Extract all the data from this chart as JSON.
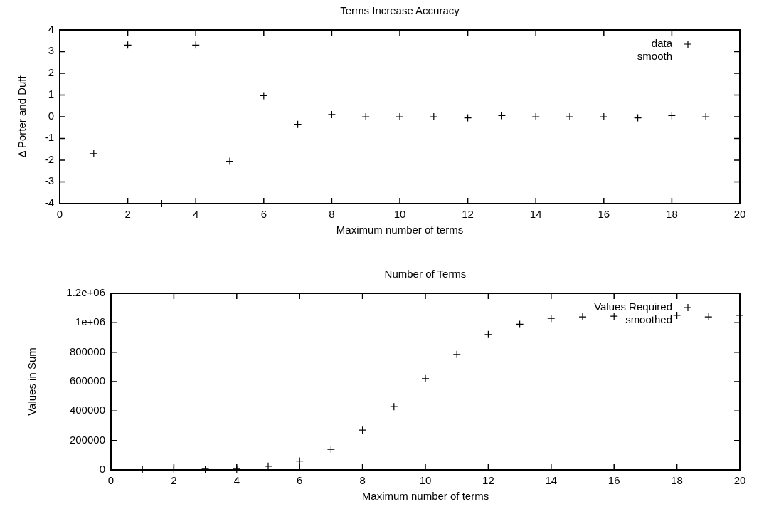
{
  "chart_data": [
    {
      "type": "scatter",
      "title": "Terms Increase Accuracy",
      "xlabel": "Maximum number of terms",
      "ylabel": "Δ Porter and Duff",
      "xlim": [
        0,
        20
      ],
      "xticks": [
        0,
        2,
        4,
        6,
        8,
        10,
        12,
        14,
        16,
        18,
        20
      ],
      "ylim": [
        -4,
        4
      ],
      "yticks": [
        -4,
        -3,
        -2,
        -1,
        0,
        1,
        2,
        3,
        4
      ],
      "marker": "cross",
      "legend": "top right",
      "grid": false,
      "series": [
        {
          "name": "data",
          "color": "#000000",
          "x": [
            1,
            2,
            3,
            4,
            5,
            6,
            7,
            8,
            9,
            10,
            11,
            12,
            13,
            14,
            15,
            16,
            17,
            18,
            19
          ],
          "values": [
            -1.7,
            3.3,
            -4,
            3.3,
            -2.05,
            0.97,
            -0.35,
            0.1,
            0,
            0,
            0,
            -0.05,
            0.05,
            0,
            0,
            0,
            -0.05,
            0.05,
            0
          ]
        },
        {
          "name": "smooth"
        }
      ]
    },
    {
      "type": "scatter",
      "title": "Number of Terms",
      "xlabel": "Maximum number of terms",
      "ylabel": "Values in Sum",
      "xlim": [
        0,
        20
      ],
      "xticks": [
        0,
        2,
        4,
        6,
        8,
        10,
        12,
        14,
        16,
        18,
        20
      ],
      "ylim": [
        0,
        1200000
      ],
      "yticks": [
        0,
        200000,
        400000,
        600000,
        800000,
        {
          "value": 1000000,
          "label": "1e+06"
        },
        {
          "value": 1200000,
          "label": "1.2e+06"
        }
      ],
      "marker": "cross",
      "legend": "top right",
      "grid": false,
      "series": [
        {
          "name": "Values Required",
          "color": "#000000",
          "x": [
            1,
            2,
            3,
            4,
            5,
            6,
            7,
            8,
            9,
            10,
            11,
            12,
            13,
            14,
            15,
            16,
            17,
            18,
            19,
            20
          ],
          "values": [
            0,
            0,
            5000,
            5000,
            25000,
            60000,
            140000,
            270000,
            430000,
            620000,
            785000,
            920000,
            990000,
            1030000,
            1040000,
            1045000,
            null,
            1050000,
            1040000,
            1050000
          ]
        },
        {
          "name": "smoothed"
        }
      ]
    }
  ]
}
